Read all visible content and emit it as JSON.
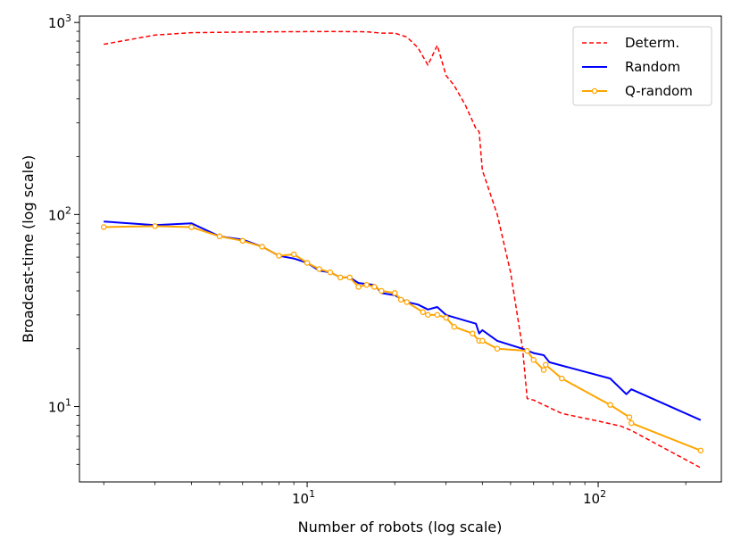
{
  "chart_data": {
    "type": "line",
    "title": "",
    "xlabel": "Number of robots (log scale)",
    "ylabel": "Broadcast-time (log scale)",
    "xscale": "log",
    "yscale": "log",
    "xlim": [
      1.65,
      265
    ],
    "ylim": [
      4.05,
      1080
    ],
    "x_ticks": [
      {
        "value": 10,
        "base": "10",
        "exp": "1"
      },
      {
        "value": 100,
        "base": "10",
        "exp": "2"
      }
    ],
    "y_ticks": [
      {
        "value": 10,
        "base": "10",
        "exp": "1"
      },
      {
        "value": 100,
        "base": "10",
        "exp": "2"
      },
      {
        "value": 1000,
        "base": "10",
        "exp": "3"
      }
    ],
    "grid": false,
    "legend_position": "top-right",
    "series": [
      {
        "name": "Determ.",
        "color": "#ff0000",
        "style": "dashed",
        "marker": "none",
        "points": [
          [
            2,
            770
          ],
          [
            3,
            860
          ],
          [
            4,
            885
          ],
          [
            6,
            892
          ],
          [
            8,
            895
          ],
          [
            12,
            897
          ],
          [
            16,
            895
          ],
          [
            18,
            880
          ],
          [
            20,
            880
          ],
          [
            22,
            840
          ],
          [
            24,
            740
          ],
          [
            26,
            600
          ],
          [
            28,
            760
          ],
          [
            30,
            530
          ],
          [
            32,
            470
          ],
          [
            35,
            370
          ],
          [
            38,
            280
          ],
          [
            39,
            270
          ],
          [
            40,
            170
          ],
          [
            45,
            100
          ],
          [
            50,
            50
          ],
          [
            55,
            20
          ],
          [
            57,
            11
          ],
          [
            60,
            10.8
          ],
          [
            75,
            9.2
          ],
          [
            100,
            8.4
          ],
          [
            120,
            7.9
          ],
          [
            130,
            7.5
          ],
          [
            225,
            4.8
          ]
        ]
      },
      {
        "name": "Random",
        "color": "#0000ff",
        "style": "solid",
        "marker": "none",
        "points": [
          [
            2,
            92
          ],
          [
            3,
            88
          ],
          [
            4,
            90
          ],
          [
            5,
            77
          ],
          [
            6,
            74
          ],
          [
            7,
            68
          ],
          [
            8,
            61
          ],
          [
            9,
            59
          ],
          [
            10,
            56
          ],
          [
            11,
            51
          ],
          [
            12,
            50
          ],
          [
            13,
            47
          ],
          [
            14,
            47
          ],
          [
            15,
            44
          ],
          [
            17,
            43
          ],
          [
            18,
            39
          ],
          [
            20,
            38
          ],
          [
            22,
            35
          ],
          [
            24,
            34
          ],
          [
            26,
            32
          ],
          [
            28,
            33
          ],
          [
            30,
            30
          ],
          [
            35,
            28
          ],
          [
            38,
            27
          ],
          [
            39,
            24
          ],
          [
            40,
            25
          ],
          [
            45,
            22
          ],
          [
            55,
            20
          ],
          [
            60,
            19
          ],
          [
            65,
            18.5
          ],
          [
            68,
            17
          ],
          [
            110,
            14
          ],
          [
            125,
            11.6
          ],
          [
            130,
            12.3
          ],
          [
            225,
            8.5
          ]
        ]
      },
      {
        "name": "Q-random",
        "color": "#ffa500",
        "style": "solid",
        "marker": "circle",
        "points": [
          [
            2,
            86
          ],
          [
            3,
            87
          ],
          [
            4,
            86
          ],
          [
            5,
            77
          ],
          [
            6,
            73
          ],
          [
            7,
            68
          ],
          [
            8,
            61
          ],
          [
            9,
            62
          ],
          [
            10,
            56
          ],
          [
            11,
            52
          ],
          [
            12,
            50
          ],
          [
            13,
            47
          ],
          [
            14,
            47
          ],
          [
            15,
            42
          ],
          [
            16,
            43
          ],
          [
            17,
            42
          ],
          [
            18,
            40
          ],
          [
            20,
            39
          ],
          [
            21,
            36
          ],
          [
            22,
            35
          ],
          [
            25,
            31
          ],
          [
            26,
            30
          ],
          [
            28,
            30
          ],
          [
            30,
            29
          ],
          [
            32,
            26
          ],
          [
            37,
            24
          ],
          [
            39,
            22
          ],
          [
            40,
            22
          ],
          [
            45,
            20
          ],
          [
            57,
            19.5
          ],
          [
            60,
            17.5
          ],
          [
            65,
            15.5
          ],
          [
            66,
            16.5
          ],
          [
            75,
            14
          ],
          [
            110,
            10.2
          ],
          [
            128,
            8.8
          ],
          [
            130,
            8.2
          ],
          [
            225,
            5.9
          ]
        ]
      }
    ]
  }
}
